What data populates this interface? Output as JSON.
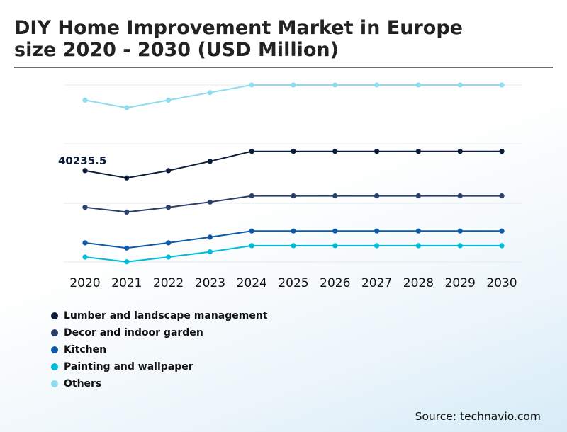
{
  "header": {
    "title_line1": "DIY Home Improvement Market in Europe",
    "title_line2": "size 2020 - 2030 (USD Million)"
  },
  "source": "Source: technavio.com",
  "chart_data": {
    "type": "line",
    "title": "DIY Home Improvement Market in Europe size 2020 - 2030 (USD Million)",
    "x": [
      "2020",
      "2021",
      "2022",
      "2023",
      "2024",
      "2025",
      "2026",
      "2027",
      "2028",
      "2029",
      "2030"
    ],
    "annotation": {
      "series": "Lumber and landscape management",
      "x": "2020",
      "label": "40235.5"
    },
    "grid": true,
    "y_axis_shown": false,
    "legend_position": "bottom-left",
    "series": [
      {
        "name": "Lumber and landscape management",
        "color": "#0b1c3a",
        "values": [
          40235.5,
          38700,
          40235.5,
          42200,
          44300,
          44300,
          44300,
          44300,
          44300,
          44300,
          44300
        ]
      },
      {
        "name": "Decor and indoor garden",
        "color": "#2b3f6c",
        "values": [
          32500,
          31500,
          32500,
          33600,
          34900,
          34900,
          34900,
          34900,
          34900,
          34900,
          34900
        ]
      },
      {
        "name": "Kitchen",
        "color": "#0f5aa6",
        "values": [
          25000,
          23900,
          25000,
          26200,
          27500,
          27500,
          27500,
          27500,
          27500,
          27500,
          27500
        ]
      },
      {
        "name": "Painting and wallpaper",
        "color": "#00bcd8",
        "values": [
          22000,
          21000,
          22000,
          23100,
          24400,
          24400,
          24400,
          24400,
          24400,
          24400,
          24400
        ]
      },
      {
        "name": "Others",
        "color": "#8ddcf0",
        "values": [
          55100,
          53500,
          55100,
          56700,
          58300,
          58300,
          58300,
          58300,
          58300,
          58300,
          58300
        ]
      }
    ]
  }
}
